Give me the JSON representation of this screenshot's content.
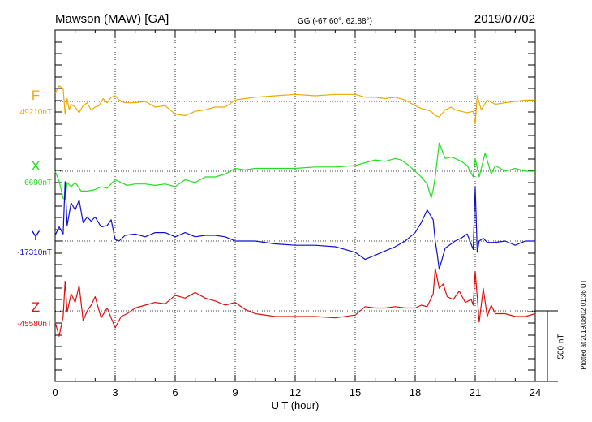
{
  "header": {
    "station": "Mawson (MAW)  [GA]",
    "coords": "GG (-67.60°,  62.88°)",
    "date": "2019/07/02"
  },
  "footer_note": "Plotted at 2019/08/02 01:36 UT",
  "colors": {
    "F": "#f0a800",
    "X": "#22dd22",
    "Y": "#1010cc",
    "Z": "#dd1010",
    "axes": "#000000",
    "grid": "#000000"
  },
  "chart_data": {
    "type": "line",
    "xlabel": "U T (hour)",
    "ylabel": "",
    "xlim": [
      0,
      24
    ],
    "x_ticks": [
      "0",
      "3",
      "6",
      "9",
      "12",
      "15",
      "18",
      "21",
      "24"
    ],
    "scale_bar": {
      "label": "500 nT",
      "value_nT": 500
    },
    "grid": "dotted vertical lines every 3 h, dotted baseline per component",
    "series": [
      {
        "name": "F",
        "baseline_label": "49210nT",
        "x": [
          0.0,
          0.2,
          0.4,
          0.5,
          0.6,
          0.7,
          0.8,
          1.0,
          1.2,
          1.4,
          1.6,
          1.8,
          2.0,
          2.2,
          2.4,
          2.6,
          2.8,
          3.0,
          3.2,
          3.5,
          4.0,
          4.5,
          5.0,
          5.5,
          6.0,
          6.5,
          7.0,
          7.5,
          8.0,
          8.5,
          9.0,
          9.5,
          10.0,
          11.0,
          12.0,
          13.0,
          14.0,
          15.0,
          15.5,
          16.0,
          16.5,
          17.0,
          17.5,
          18.0,
          18.3,
          18.6,
          18.8,
          19.0,
          19.2,
          19.5,
          19.8,
          20.0,
          20.3,
          20.6,
          20.9,
          21.0,
          21.1,
          21.3,
          21.6,
          22.0,
          22.5,
          23.0,
          23.5,
          24.0
        ],
        "values": [
          60,
          110,
          90,
          -90,
          20,
          -60,
          -20,
          -40,
          -80,
          -30,
          -10,
          -60,
          -40,
          -30,
          20,
          -10,
          30,
          40,
          10,
          -10,
          -10,
          0,
          -40,
          -30,
          -90,
          -100,
          -70,
          -60,
          -40,
          -40,
          10,
          20,
          30,
          40,
          50,
          40,
          50,
          50,
          30,
          30,
          20,
          30,
          10,
          -30,
          -50,
          -60,
          -70,
          -100,
          -110,
          -60,
          -40,
          -60,
          -70,
          -80,
          -70,
          -160,
          40,
          -60,
          10,
          -20,
          -10,
          0,
          10,
          10
        ]
      },
      {
        "name": "X",
        "baseline_label": "6690nT",
        "x": [
          0.0,
          0.2,
          0.4,
          0.5,
          0.6,
          0.8,
          1.0,
          1.3,
          1.6,
          2.0,
          2.3,
          2.6,
          3.0,
          3.3,
          3.6,
          4.0,
          4.5,
          5.0,
          5.5,
          6.0,
          6.5,
          7.0,
          7.5,
          8.0,
          8.5,
          9.0,
          9.5,
          10.0,
          11.0,
          12.0,
          13.0,
          14.0,
          15.0,
          16.0,
          16.5,
          17.0,
          17.3,
          17.6,
          18.0,
          18.3,
          18.6,
          18.8,
          18.9,
          19.0,
          19.2,
          19.5,
          19.8,
          20.0,
          20.3,
          20.6,
          20.9,
          21.0,
          21.2,
          21.5,
          21.8,
          22.0,
          22.5,
          23.0,
          23.5,
          24.0
        ],
        "values": [
          0,
          -70,
          -190,
          -200,
          -80,
          -110,
          -80,
          -140,
          -140,
          -130,
          -110,
          -120,
          -60,
          -80,
          -100,
          -90,
          -90,
          -100,
          -90,
          -110,
          -60,
          -80,
          -40,
          -40,
          -20,
          20,
          10,
          20,
          20,
          20,
          30,
          30,
          40,
          80,
          70,
          90,
          80,
          50,
          0,
          -40,
          -90,
          -190,
          -130,
          -40,
          200,
          90,
          100,
          90,
          70,
          40,
          -40,
          90,
          -40,
          130,
          -20,
          40,
          0,
          20,
          0,
          0
        ]
      },
      {
        "name": "Y",
        "baseline_label": "-17310nT",
        "x": [
          0.0,
          0.2,
          0.4,
          0.5,
          0.6,
          0.8,
          1.0,
          1.2,
          1.4,
          1.6,
          1.8,
          2.0,
          2.3,
          2.6,
          2.8,
          3.0,
          3.2,
          3.5,
          4.0,
          4.5,
          5.0,
          5.5,
          6.0,
          6.5,
          7.0,
          7.5,
          8.0,
          8.5,
          9.0,
          10.0,
          11.0,
          12.0,
          13.0,
          14.0,
          14.5,
          15.0,
          15.5,
          16.0,
          16.5,
          17.0,
          17.5,
          18.0,
          18.3,
          18.6,
          18.9,
          19.0,
          19.1,
          19.2,
          19.5,
          19.8,
          20.0,
          20.3,
          20.6,
          20.9,
          21.0,
          21.1,
          21.2,
          21.4,
          21.6,
          22.0,
          22.5,
          23.0,
          23.5,
          24.0
        ],
        "values": [
          40,
          100,
          50,
          420,
          110,
          270,
          220,
          290,
          130,
          170,
          140,
          170,
          100,
          110,
          150,
          10,
          0,
          40,
          50,
          30,
          60,
          60,
          30,
          60,
          30,
          40,
          40,
          30,
          0,
          0,
          -20,
          -30,
          -30,
          -40,
          -60,
          -80,
          -130,
          -100,
          -70,
          -40,
          0,
          60,
          130,
          220,
          150,
          0,
          -90,
          -200,
          -50,
          -20,
          0,
          20,
          50,
          -60,
          380,
          -80,
          0,
          20,
          -10,
          -10,
          0,
          -30,
          0,
          0
        ]
      },
      {
        "name": "Z",
        "baseline_label": "-45580nT",
        "x": [
          0.0,
          0.2,
          0.4,
          0.5,
          0.6,
          0.8,
          1.0,
          1.2,
          1.4,
          1.6,
          1.8,
          2.0,
          2.3,
          2.6,
          3.0,
          3.3,
          3.6,
          4.0,
          4.5,
          5.0,
          5.5,
          6.0,
          6.5,
          7.0,
          7.5,
          8.0,
          8.5,
          9.0,
          9.5,
          10.0,
          11.0,
          12.0,
          13.0,
          14.0,
          15.0,
          15.5,
          16.0,
          16.5,
          17.0,
          17.5,
          18.0,
          18.3,
          18.6,
          18.9,
          19.0,
          19.2,
          19.4,
          19.6,
          19.9,
          20.2,
          20.5,
          20.8,
          20.9,
          21.0,
          21.2,
          21.4,
          21.6,
          21.8,
          22.0,
          22.5,
          23.0,
          23.5,
          24.0
        ],
        "values": [
          -80,
          -180,
          -40,
          210,
          -10,
          120,
          60,
          180,
          -70,
          0,
          40,
          100,
          -50,
          20,
          -120,
          -40,
          -20,
          20,
          40,
          60,
          50,
          110,
          90,
          130,
          90,
          70,
          40,
          60,
          10,
          -20,
          -40,
          -40,
          -40,
          -50,
          -30,
          30,
          20,
          20,
          30,
          20,
          20,
          40,
          30,
          120,
          300,
          160,
          190,
          100,
          80,
          140,
          60,
          80,
          40,
          280,
          -80,
          160,
          -40,
          40,
          -20,
          -20,
          -40,
          -40,
          -20
        ]
      }
    ]
  }
}
